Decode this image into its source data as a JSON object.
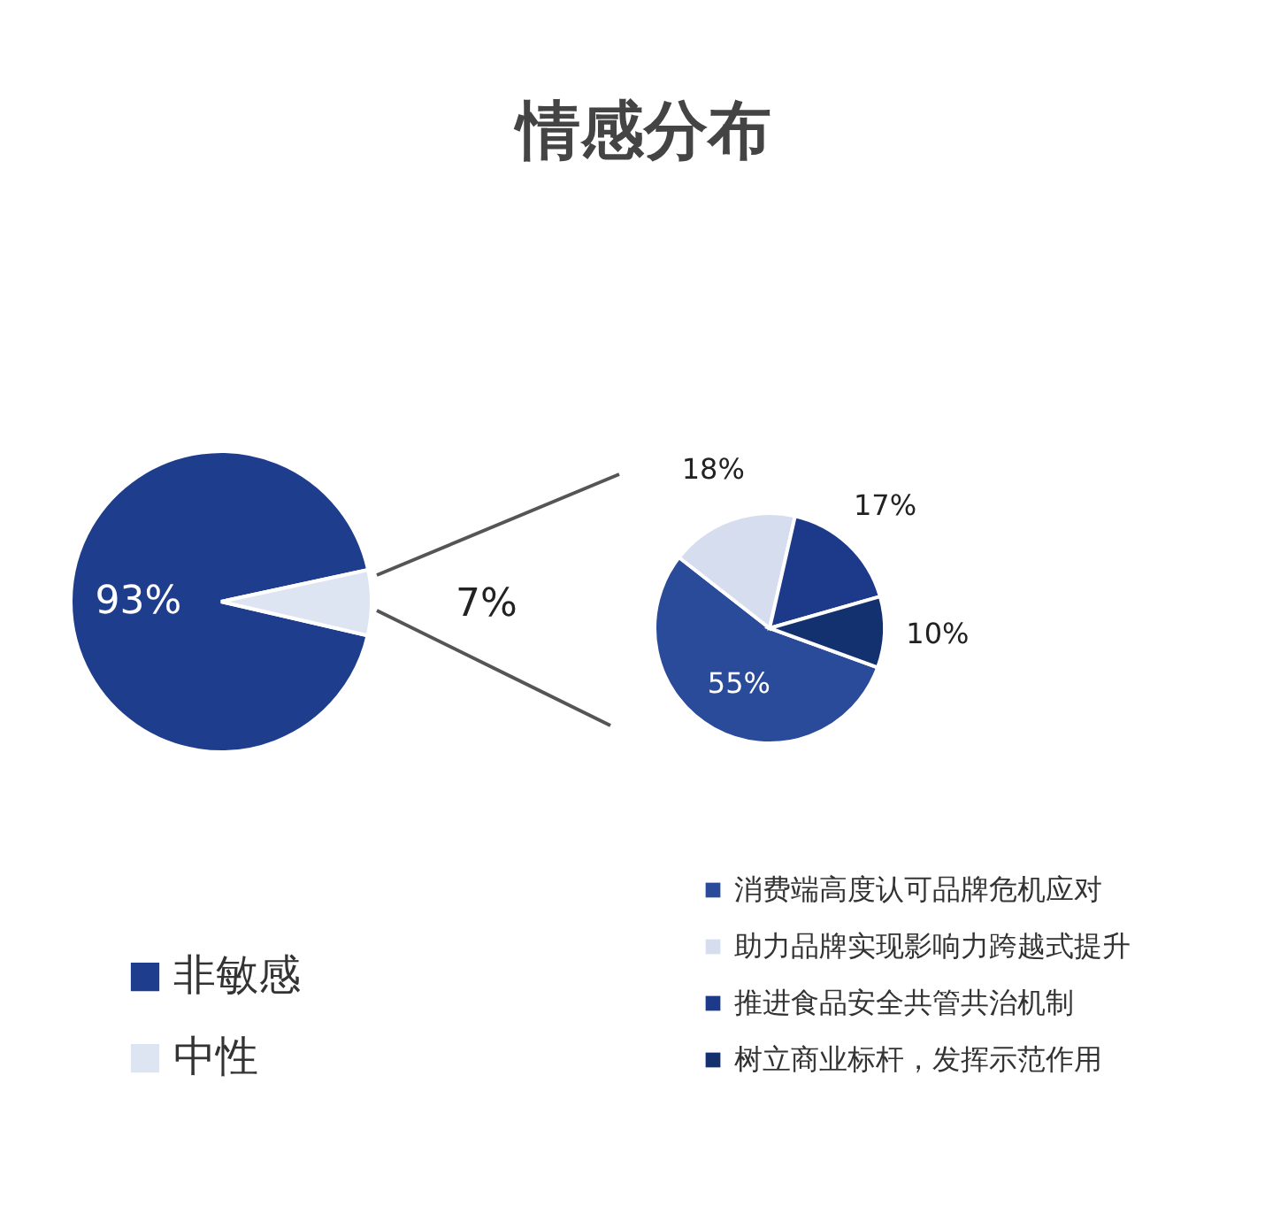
{
  "chart_data": [
    {
      "type": "pie",
      "title": "情感分布",
      "categories": [
        "非敏感",
        "中性"
      ],
      "values": [
        93,
        7
      ],
      "colors": [
        "#1e3d8c",
        "#dde4f2"
      ],
      "value_labels": [
        "93%",
        "7%"
      ],
      "legend": "bottom left"
    },
    {
      "type": "pie",
      "categories": [
        "消费端高度认可品牌危机应对",
        "助力品牌实现影响力跨越式提升",
        "推进食品安全共管共治机制",
        "树立商业标杆，发挥示范作用"
      ],
      "values": [
        55,
        18,
        17,
        10
      ],
      "colors": [
        "#2a4a9a",
        "#d5ddee",
        "#1d3a8a",
        "#13306f"
      ],
      "value_labels": [
        "55%",
        "18%",
        "17%",
        "10%"
      ],
      "legend": "bottom right"
    }
  ]
}
